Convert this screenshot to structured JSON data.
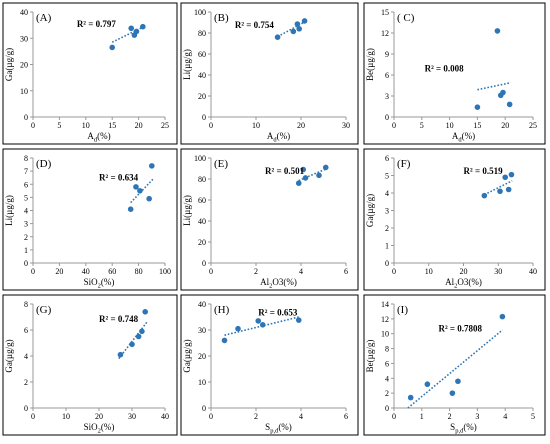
{
  "chart_data": [
    {
      "type": "scatter",
      "panel_label": "(A)",
      "xlabel": "Ad(%)",
      "xlabel_main": "A",
      "xlabel_sub": "d",
      "xlabel_tail": "(%)",
      "ylabel": "Ga(µg/g)",
      "xlim": [
        0,
        25
      ],
      "ylim": [
        0,
        40
      ],
      "xticks": [
        0,
        5,
        10,
        15,
        20,
        25
      ],
      "yticks": [
        0,
        10,
        20,
        30,
        40
      ],
      "points": [
        [
          15,
          26.5
        ],
        [
          18.6,
          33.8
        ],
        [
          19.2,
          31.2
        ],
        [
          19.6,
          32.6
        ],
        [
          20.8,
          34.4
        ]
      ],
      "trend": [
        [
          15,
          28.5
        ],
        [
          21,
          34.4
        ]
      ],
      "r2_text": "R² = 0.797",
      "r2_at": [
        8.3,
        34.2
      ]
    },
    {
      "type": "scatter",
      "panel_label": "(B)",
      "xlabel": "Ad(%)",
      "xlabel_main": "A",
      "xlabel_sub": "d",
      "xlabel_tail": "(%)",
      "ylabel": "Li(µg/g)",
      "xlim": [
        0,
        30
      ],
      "ylim": [
        0,
        100
      ],
      "xticks": [
        0,
        10,
        20,
        30
      ],
      "yticks": [
        0,
        20,
        40,
        60,
        80,
        100
      ],
      "points": [
        [
          14.8,
          76
        ],
        [
          18.3,
          81.5
        ],
        [
          19.2,
          88.5
        ],
        [
          19.6,
          84
        ],
        [
          20.8,
          91.5
        ]
      ],
      "trend": [
        [
          14.8,
          76.5
        ],
        [
          21,
          91
        ]
      ],
      "r2_text": "R² = 0.754",
      "r2_at": [
        5.3,
        85
      ]
    },
    {
      "type": "scatter",
      "panel_label": "( C)",
      "xlabel": "Ad(%)",
      "xlabel_main": "A",
      "xlabel_sub": "d",
      "xlabel_tail": "(%)",
      "ylabel": "Be(µg/g)",
      "xlim": [
        0,
        25
      ],
      "ylim": [
        0,
        15
      ],
      "xticks": [
        0,
        5,
        10,
        15,
        20,
        25
      ],
      "yticks": [
        0,
        3,
        6,
        9,
        12,
        15
      ],
      "points": [
        [
          15,
          1.4
        ],
        [
          18.6,
          12.3
        ],
        [
          19.2,
          3.1
        ],
        [
          19.6,
          3.5
        ],
        [
          20.8,
          1.8
        ]
      ],
      "trend": [
        [
          15,
          3.9
        ],
        [
          21,
          4.9
        ]
      ],
      "r2_text": "R² = 0.008",
      "r2_at": [
        5.5,
        6.5
      ]
    },
    {
      "type": "scatter",
      "panel_label": "(D)",
      "xlabel": "SiO2(%)",
      "xlabel_main": "SiO",
      "xlabel_sub": "2",
      "xlabel_tail": "(%)",
      "ylabel": "Li(µg/g)",
      "xlim": [
        0,
        100
      ],
      "ylim": [
        0,
        8
      ],
      "xticks": [
        0,
        20,
        40,
        60,
        80,
        100
      ],
      "yticks": [
        0,
        1,
        2,
        3,
        4,
        5,
        6,
        7,
        8
      ],
      "points": [
        [
          74,
          4.1
        ],
        [
          78,
          5.8
        ],
        [
          81,
          5.5
        ],
        [
          88,
          4.9
        ],
        [
          90,
          7.4
        ]
      ],
      "trend": [
        [
          74,
          4.6
        ],
        [
          91,
          6.4
        ]
      ],
      "r2_text": "R² = 0.634",
      "r2_at": [
        50,
        6.3
      ]
    },
    {
      "type": "scatter",
      "panel_label": "(E)",
      "xlabel": "Al2O3(%)",
      "xlabel_main": "Al",
      "xlabel_sub": "2",
      "xlabel_tail": "O3(%)",
      "ylabel": "Li(µg/g)",
      "xlim": [
        0,
        6
      ],
      "ylim": [
        0,
        100
      ],
      "xticks": [
        0,
        2,
        4,
        6
      ],
      "yticks": [
        0,
        20,
        40,
        60,
        80,
        100
      ],
      "points": [
        [
          3.9,
          76
        ],
        [
          4.1,
          89
        ],
        [
          4.2,
          81
        ],
        [
          4.8,
          83.5
        ],
        [
          5.1,
          91
        ]
      ],
      "trend": [
        [
          3.9,
          78.5
        ],
        [
          5.1,
          89.5
        ]
      ],
      "r2_text": "R² = 0.501",
      "r2_at": [
        2.4,
        85
      ]
    },
    {
      "type": "scatter",
      "panel_label": "(F)",
      "xlabel": "Al2O3(%)",
      "xlabel_main": "Al",
      "xlabel_sub": "2",
      "xlabel_tail": "O3(%)",
      "ylabel": "Ga(µg/g)",
      "xlim": [
        0,
        40
      ],
      "ylim": [
        0,
        6
      ],
      "xticks": [
        0,
        10,
        20,
        30,
        40
      ],
      "yticks": [
        0,
        1,
        2,
        3,
        4,
        5,
        6
      ],
      "points": [
        [
          26,
          3.85
        ],
        [
          30.5,
          4.1
        ],
        [
          32,
          4.9
        ],
        [
          33,
          4.2
        ],
        [
          33.8,
          5.05
        ]
      ],
      "trend": [
        [
          26,
          3.9
        ],
        [
          34,
          4.7
        ]
      ],
      "r2_text": "R² = 0.519",
      "r2_at": [
        20,
        5.1
      ]
    },
    {
      "type": "scatter",
      "panel_label": "(G)",
      "xlabel": "SiO2(%)",
      "xlabel_main": "SiO",
      "xlabel_sub": "2",
      "xlabel_tail": "(%)",
      "ylabel": "Ga(µg/g)",
      "xlim": [
        0,
        40
      ],
      "ylim": [
        0,
        8
      ],
      "xticks": [
        0,
        10,
        20,
        30,
        40
      ],
      "yticks": [
        0,
        2,
        4,
        6,
        8
      ],
      "points": [
        [
          26.5,
          4.1
        ],
        [
          30,
          4.9
        ],
        [
          32,
          5.5
        ],
        [
          33,
          5.9
        ],
        [
          34,
          7.4
        ]
      ],
      "trend": [
        [
          26,
          3.8
        ],
        [
          34.5,
          6.6
        ]
      ],
      "r2_text": "R² = 0.748",
      "r2_at": [
        20,
        6.6
      ]
    },
    {
      "type": "scatter",
      "panel_label": "(H)",
      "xlabel": "Sp,d(%)",
      "xlabel_main": "S",
      "xlabel_sub": "p,d",
      "xlabel_tail": "(%)",
      "ylabel": "Ga(µg/g)",
      "xlim": [
        0,
        6
      ],
      "ylim": [
        0,
        40
      ],
      "xticks": [
        0,
        2,
        4,
        6
      ],
      "yticks": [
        0,
        10,
        20,
        30,
        40
      ],
      "points": [
        [
          0.6,
          26
        ],
        [
          1.2,
          30.5
        ],
        [
          2.1,
          33.5
        ],
        [
          2.3,
          32
        ],
        [
          3.9,
          33.8
        ]
      ],
      "trend": [
        [
          0.6,
          28
        ],
        [
          3.9,
          35
        ]
      ],
      "r2_text": "R² = 0.653",
      "r2_at": [
        2.1,
        35.5
      ]
    },
    {
      "type": "scatter",
      "panel_label": "(I)",
      "xlabel": "Sp,d(%)",
      "xlabel_main": "S",
      "xlabel_sub": "p,d",
      "xlabel_tail": "(%)",
      "ylabel": "Be(µg/g)",
      "xlim": [
        0,
        5
      ],
      "ylim": [
        0,
        14
      ],
      "xticks": [
        0,
        1,
        2,
        3,
        4,
        5
      ],
      "yticks": [
        0,
        2,
        4,
        6,
        8,
        10,
        12,
        14
      ],
      "points": [
        [
          0.6,
          1.4
        ],
        [
          1.2,
          3.2
        ],
        [
          2.1,
          2.0
        ],
        [
          2.3,
          3.6
        ],
        [
          3.9,
          12.3
        ]
      ],
      "trend": [
        [
          0.5,
          0.0
        ],
        [
          3.9,
          10.5
        ]
      ],
      "r2_text": "R² = 0.7808",
      "r2_at": [
        1.6,
        10.3
      ]
    }
  ],
  "colors": {
    "point": "#2E75B6",
    "trend": "#2E75B6",
    "axis": "#999999",
    "frame": "#000000"
  }
}
